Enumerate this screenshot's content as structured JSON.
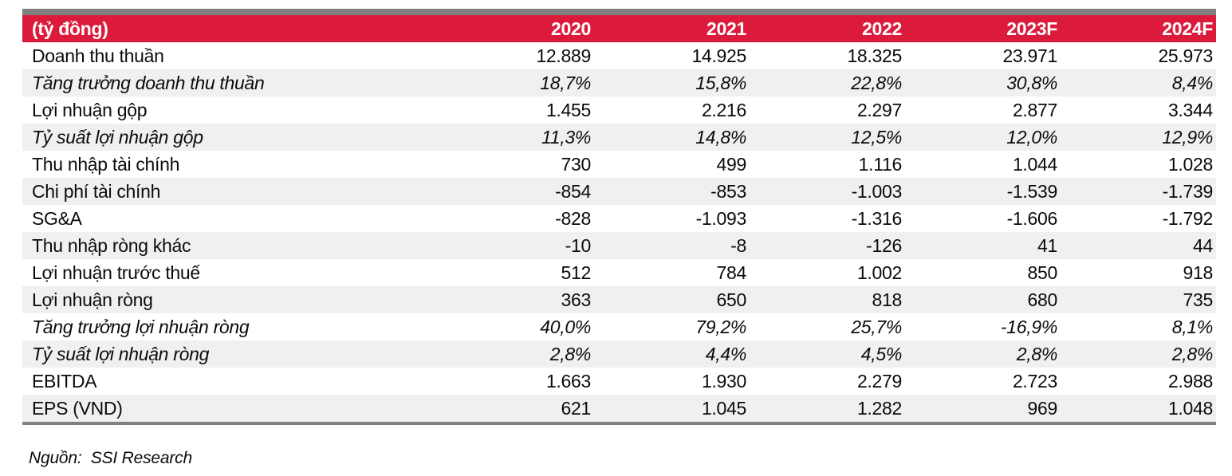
{
  "table": {
    "unit_header": "(tỷ đồng)",
    "columns": [
      "2020",
      "2021",
      "2022",
      "2023F",
      "2024F"
    ],
    "rows": [
      {
        "label": "Doanh thu thuần",
        "italic": false,
        "values": [
          "12.889",
          "14.925",
          "18.325",
          "23.971",
          "25.973"
        ]
      },
      {
        "label": "Tăng trưởng doanh thu thuần",
        "italic": true,
        "values": [
          "18,7%",
          "15,8%",
          "22,8%",
          "30,8%",
          "8,4%"
        ]
      },
      {
        "label": "Lợi nhuận gộp",
        "italic": false,
        "values": [
          "1.455",
          "2.216",
          "2.297",
          "2.877",
          "3.344"
        ]
      },
      {
        "label": "Tỷ suất lợi nhuận gộp",
        "italic": true,
        "values": [
          "11,3%",
          "14,8%",
          "12,5%",
          "12,0%",
          "12,9%"
        ]
      },
      {
        "label": "Thu nhập tài chính",
        "italic": false,
        "values": [
          "730",
          "499",
          "1.116",
          "1.044",
          "1.028"
        ]
      },
      {
        "label": "Chi phí tài chính",
        "italic": false,
        "values": [
          "-854",
          "-853",
          "-1.003",
          "-1.539",
          "-1.739"
        ]
      },
      {
        "label": "SG&A",
        "italic": false,
        "values": [
          "-828",
          "-1.093",
          "-1.316",
          "-1.606",
          "-1.792"
        ]
      },
      {
        "label": "Thu nhập ròng khác",
        "italic": false,
        "values": [
          "-10",
          "-8",
          "-126",
          "41",
          "44"
        ]
      },
      {
        "label": "Lợi nhuận trước thuế",
        "italic": false,
        "values": [
          "512",
          "784",
          "1.002",
          "850",
          "918"
        ]
      },
      {
        "label": "Lợi nhuận ròng",
        "italic": false,
        "values": [
          "363",
          "650",
          "818",
          "680",
          "735"
        ]
      },
      {
        "label": "Tăng trưởng lợi nhuận ròng",
        "italic": true,
        "values": [
          "40,0%",
          "79,2%",
          "25,7%",
          "-16,9%",
          "8,1%"
        ]
      },
      {
        "label": "Tỷ suất lợi nhuận ròng",
        "italic": true,
        "values": [
          "2,8%",
          "4,4%",
          "4,5%",
          "2,8%",
          "2,8%"
        ]
      },
      {
        "label": "EBITDA",
        "italic": false,
        "values": [
          "1.663",
          "1.930",
          "2.279",
          "2.723",
          "2.988"
        ]
      },
      {
        "label": "EPS (VND)",
        "italic": false,
        "values": [
          "621",
          "1.045",
          "1.282",
          "969",
          "1.048"
        ]
      }
    ]
  },
  "footer": {
    "source": "Nguồn:  SSI Research"
  },
  "colors": {
    "header_red": "#DC1B3C",
    "bar_gray": "#808080",
    "stripe_gray": "#F0F0F0",
    "header_text": "#FFFFFF",
    "body_text": "#0B0B0B"
  }
}
